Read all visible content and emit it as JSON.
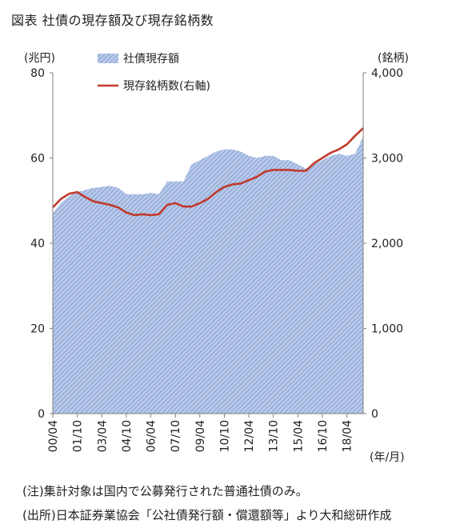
{
  "title": "図表 社債の現存額及び現存銘柄数",
  "notes": {
    "note1": "(注)集計対象は国内で公募発行された普通社債のみ。",
    "note2": "(出所)日本証券業協会「公社債発行額・償還額等」より大和総研作成"
  },
  "chart_data": {
    "type": "area",
    "x": [
      "00/04",
      "00/10",
      "01/04",
      "01/10",
      "02/04",
      "02/10",
      "03/04",
      "03/10",
      "04/04",
      "04/10",
      "05/04",
      "05/10",
      "06/04",
      "06/10",
      "07/04",
      "07/10",
      "08/04",
      "08/10",
      "09/04",
      "09/10",
      "10/04",
      "10/10",
      "11/04",
      "11/10",
      "12/04",
      "12/10",
      "13/04",
      "13/10",
      "14/04",
      "14/10",
      "15/04",
      "15/10",
      "16/04",
      "16/10",
      "17/04",
      "17/10",
      "18/04",
      "18/10",
      "19/04"
    ],
    "x_tick_labels": [
      "00/04",
      "01/10",
      "03/04",
      "04/10",
      "06/04",
      "07/10",
      "09/04",
      "10/10",
      "12/04",
      "13/10",
      "15/04",
      "16/10",
      "18/04"
    ],
    "xlabel": "(年/月)",
    "series": [
      {
        "name": "社債現存額",
        "type": "area",
        "axis": "left",
        "color": "#8fa9d8",
        "values": [
          47,
          49.5,
          51,
          52,
          52.5,
          53,
          53.2,
          53.5,
          53,
          51.5,
          51.5,
          51.5,
          51.8,
          51.5,
          54.5,
          54.5,
          54.5,
          58.5,
          59.5,
          60.5,
          61.5,
          62,
          62,
          61.5,
          60.5,
          60,
          60.5,
          60.5,
          59.5,
          59.5,
          58.5,
          57.5,
          58.5,
          59.5,
          60.5,
          61,
          60.5,
          61,
          65
        ]
      },
      {
        "name": "現存銘柄数(右軸)",
        "type": "line",
        "axis": "right",
        "color": "#c0392b",
        "values": [
          2420,
          2520,
          2580,
          2600,
          2540,
          2490,
          2470,
          2450,
          2420,
          2360,
          2330,
          2340,
          2330,
          2340,
          2450,
          2470,
          2430,
          2430,
          2470,
          2520,
          2600,
          2660,
          2690,
          2700,
          2740,
          2780,
          2840,
          2860,
          2860,
          2860,
          2850,
          2850,
          2940,
          3000,
          3060,
          3100,
          3160,
          3260,
          3350
        ]
      }
    ],
    "ylabel_left": "(兆円)",
    "ylabel_right": "(銘柄)",
    "ylim_left": [
      0,
      80
    ],
    "ylim_right": [
      0,
      4000
    ],
    "yticks_left": [
      "0",
      "20",
      "40",
      "60",
      "80"
    ],
    "yticks_right": [
      "0",
      "1,000",
      "2,000",
      "3,000",
      "4,000"
    ],
    "grid": false,
    "legend_position": "top-left"
  }
}
